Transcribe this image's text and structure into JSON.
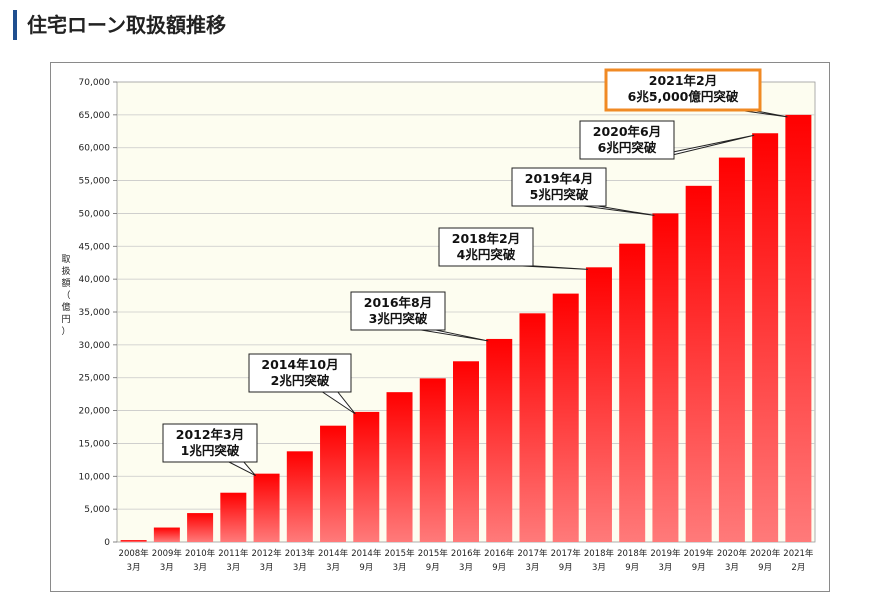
{
  "page": {
    "title": "住宅ローン取扱額推移"
  },
  "chart_data": {
    "type": "bar",
    "title": "",
    "ylabel": "取扱額（億円）",
    "ylabel_chars": [
      "取",
      "扱",
      "額",
      "（",
      "億",
      "円",
      "）"
    ],
    "ylim": [
      0,
      70000
    ],
    "yticks": [
      "0",
      "5,000",
      "10,000",
      "15,000",
      "20,000",
      "25,000",
      "30,000",
      "35,000",
      "40,000",
      "45,000",
      "50,000",
      "55,000",
      "60,000",
      "65,000",
      "70,000"
    ],
    "categories": [
      {
        "year": "2008年",
        "month": "3月"
      },
      {
        "year": "2009年",
        "month": "3月"
      },
      {
        "year": "2010年",
        "month": "3月"
      },
      {
        "year": "2011年",
        "month": "3月"
      },
      {
        "year": "2012年",
        "month": "3月"
      },
      {
        "year": "2013年",
        "month": "3月"
      },
      {
        "year": "2014年",
        "month": "3月"
      },
      {
        "year": "2014年",
        "month": "9月"
      },
      {
        "year": "2015年",
        "month": "3月"
      },
      {
        "year": "2015年",
        "month": "9月"
      },
      {
        "year": "2016年",
        "month": "3月"
      },
      {
        "year": "2016年",
        "month": "9月"
      },
      {
        "year": "2017年",
        "month": "3月"
      },
      {
        "year": "2017年",
        "month": "9月"
      },
      {
        "year": "2018年",
        "month": "3月"
      },
      {
        "year": "2018年",
        "month": "9月"
      },
      {
        "year": "2019年",
        "month": "3月"
      },
      {
        "year": "2019年",
        "month": "9月"
      },
      {
        "year": "2020年",
        "month": "3月"
      },
      {
        "year": "2020年",
        "month": "9月"
      },
      {
        "year": "2021年",
        "month": "2月"
      }
    ],
    "values": [
      300,
      2200,
      4400,
      7500,
      10400,
      13800,
      17700,
      19800,
      22800,
      24900,
      27500,
      30900,
      34800,
      37800,
      41800,
      45400,
      50000,
      54200,
      58500,
      62200,
      65000
    ],
    "annotations": [
      {
        "lines": [
          "2012年3月",
          "1兆円突破"
        ],
        "target": 4,
        "highlight": false
      },
      {
        "lines": [
          "2014年10月",
          "2兆円突破"
        ],
        "target": 7,
        "highlight": false
      },
      {
        "lines": [
          "2016年8月",
          "3兆円突破"
        ],
        "target": 11,
        "highlight": false
      },
      {
        "lines": [
          "2018年2月",
          "4兆円突破"
        ],
        "target": 14,
        "highlight": false
      },
      {
        "lines": [
          "2019年4月",
          "5兆円突破"
        ],
        "target": 16,
        "highlight": false
      },
      {
        "lines": [
          "2020年6月",
          "6兆円突破"
        ],
        "target": 19,
        "highlight": false
      },
      {
        "lines": [
          "2021年2月",
          "6兆5,000億円突破"
        ],
        "target": 20,
        "highlight": true
      }
    ],
    "colors": {
      "plot_bg": "#fdfdf0",
      "bar_top": "#ff0000",
      "bar_bottom": "#ff7a7a",
      "grid": "#c8c8c8",
      "highlight_border": "#f08a24",
      "callout_fill": "#ffffff",
      "callout_border": "#222222"
    }
  }
}
